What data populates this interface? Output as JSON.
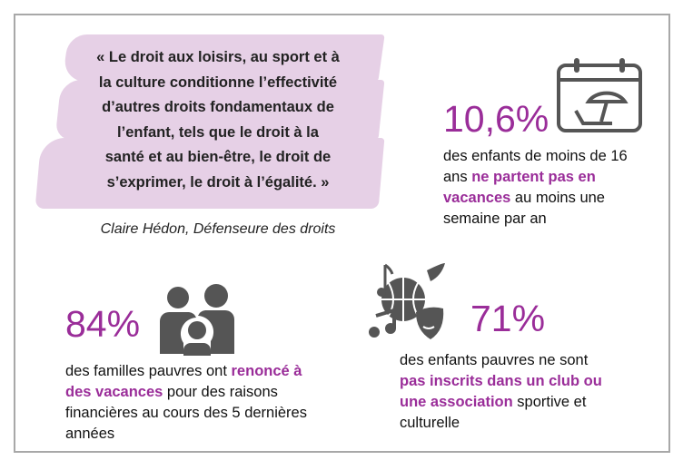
{
  "quote": {
    "lines": [
      "« Le droit aux loisirs, au sport et à",
      "la culture conditionne l’effectivité",
      "d’autres droits fondamentaux de",
      "l’enfant, tels que le droit à la",
      "santé et au bien-être, le droit de",
      "s’exprimer, le droit à l’égalité. »"
    ],
    "attribution": "Claire Hédon, Défenseure des droits"
  },
  "stats": {
    "vacances": {
      "value": "10,6%",
      "icon": "calendar-beach-umbrella-icon",
      "before": "des enfants de moins de 16 ans ",
      "highlight": "ne partent pas en vacances",
      "after": " au moins une semaine par an"
    },
    "familles": {
      "value": "84%",
      "icon": "family-icon",
      "before": "des familles pauvres ont ",
      "highlight": "renoncé à des vacances",
      "after": " pour des raisons financières au cours des 5 dernières années"
    },
    "clubs": {
      "value": "71%",
      "icon": "music-sport-theatre-icon",
      "before": "des enfants pauvres ne sont ",
      "highlight": "pas inscrits dans un club ou une association",
      "after": " sportive et culturelle"
    }
  },
  "colors": {
    "accent": "#9a2d99",
    "highlight_band": "#e6d0e6",
    "icon": "#555555",
    "border": "#a8a8a8"
  }
}
